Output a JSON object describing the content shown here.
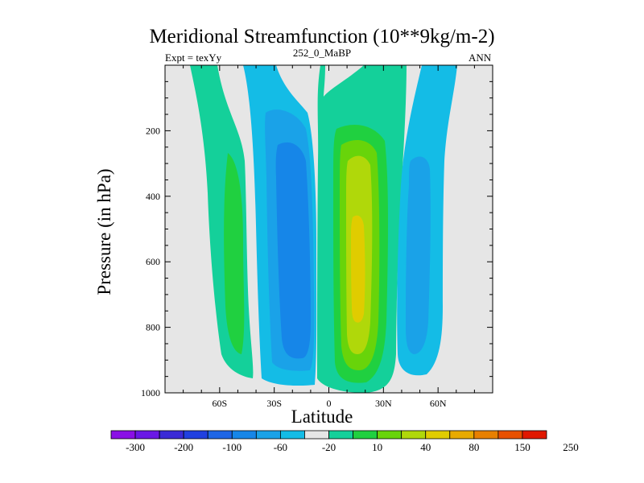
{
  "chart_data": {
    "type": "contour",
    "title": "Meridional Streamfunction (10**9kg/m-2)",
    "left_label": "Expt = texYy",
    "center_label": "252_0_MaBP",
    "right_label": "ANN",
    "xlabel": "Latitude",
    "ylabel": "Pressure (in hPa)",
    "xlim": [
      -90,
      90
    ],
    "ylim": [
      1000,
      0
    ],
    "x_ticks": [
      {
        "value": -60,
        "label": "60S"
      },
      {
        "value": -30,
        "label": "30S"
      },
      {
        "value": 0,
        "label": "0"
      },
      {
        "value": 30,
        "label": "30N"
      },
      {
        "value": 60,
        "label": "60N"
      }
    ],
    "y_ticks": [
      {
        "value": 200,
        "label": "200"
      },
      {
        "value": 400,
        "label": "400"
      },
      {
        "value": 600,
        "label": "600"
      },
      {
        "value": 800,
        "label": "800"
      },
      {
        "value": 1000,
        "label": "1000"
      }
    ],
    "background_color": "#e6e6e6",
    "colorbar": {
      "labels": [
        "-300",
        "-200",
        "-100",
        "-60",
        "-20",
        "10",
        "40",
        "80",
        "150",
        "250"
      ],
      "colors": [
        "#8a10e6",
        "#6a18e6",
        "#3a2ad6",
        "#2040e0",
        "#1e66e6",
        "#1686e8",
        "#1aa2e8",
        "#14bce6",
        "#e6e6e6",
        "#14d09a",
        "#20d040",
        "#68d40a",
        "#b0d80a",
        "#e0cc00",
        "#e8aa00",
        "#e88000",
        "#e85000",
        "#e01800"
      ]
    },
    "regions": [
      {
        "name": "sh-outer-cell",
        "lat": [
          -76,
          -40
        ],
        "p": [
          0,
          950
        ],
        "value_range": "10 to 40",
        "colors": [
          "#14d09a",
          "#20d040"
        ]
      },
      {
        "name": "sh-ferrel-cell",
        "lat": [
          -38,
          -8
        ],
        "p": [
          60,
          960
        ],
        "value_range": "-60 to -20",
        "colors": [
          "#1aa2e8",
          "#1686e8",
          "#1e66e6"
        ]
      },
      {
        "name": "tropical-cell",
        "lat": [
          -5,
          25
        ],
        "p": [
          0,
          990
        ],
        "value_range": "10 to 150",
        "colors": [
          "#14d09a",
          "#20d040",
          "#68d40a",
          "#b0d80a",
          "#e0cc00"
        ]
      },
      {
        "name": "nh-ferrel-cell",
        "lat": [
          38,
          73
        ],
        "p": [
          0,
          960
        ],
        "value_range": "-60 to -20",
        "colors": [
          "#14bce6",
          "#1aa2e8"
        ]
      }
    ]
  }
}
